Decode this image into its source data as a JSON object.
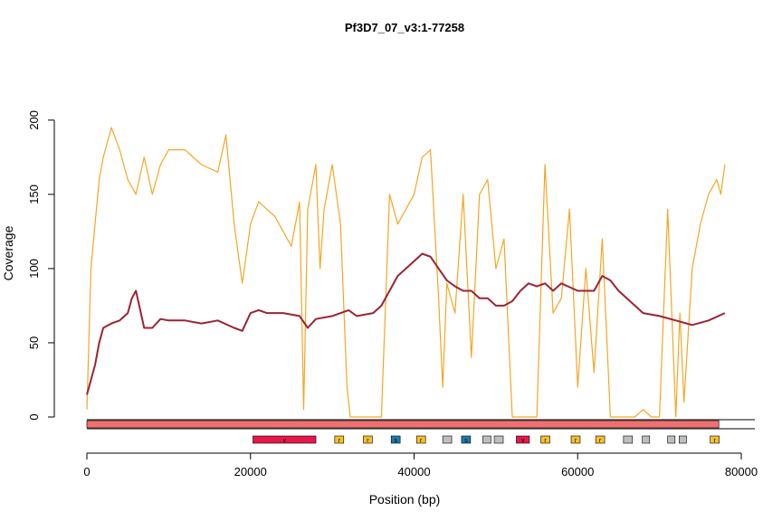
{
  "chart_data": {
    "type": "line",
    "title": "Pf3D7_07_v3:1-77258",
    "xlabel": "Position (bp)",
    "ylabel": "Coverage",
    "xlim": [
      0,
      80000
    ],
    "ylim": [
      0,
      220
    ],
    "x_ticks": [
      0,
      20000,
      40000,
      60000,
      80000
    ],
    "x_tick_labels": [
      "0",
      "20000",
      "40000",
      "60000",
      "80000"
    ],
    "y_ticks": [
      0,
      50,
      100,
      150,
      200
    ],
    "y_tick_labels": [
      "0",
      "50",
      "100",
      "150",
      "200"
    ],
    "grid": false,
    "series": [
      {
        "color": "#F5A623",
        "x": [
          0,
          500,
          1000,
          1500,
          2000,
          3000,
          4000,
          5000,
          6000,
          7000,
          8000,
          9000,
          10000,
          12000,
          14000,
          16000,
          17000,
          18000,
          19000,
          20000,
          21000,
          22000,
          23000,
          24000,
          25000,
          26000,
          26500,
          27000,
          28000,
          28500,
          29000,
          30000,
          31000,
          31800,
          32200,
          33000,
          34000,
          35000,
          36000,
          37000,
          38000,
          39000,
          40000,
          41000,
          42000,
          43000,
          43500,
          44000,
          45000,
          46000,
          47000,
          48000,
          49000,
          50000,
          51000,
          52000,
          53000,
          54000,
          55000,
          56000,
          57000,
          58000,
          59000,
          60000,
          61000,
          62000,
          63000,
          64000,
          65000,
          66000,
          67000,
          68000,
          69000,
          70000,
          71000,
          72000,
          72500,
          73000,
          74000,
          75000,
          76000,
          77000,
          77500,
          78000
        ],
        "y": [
          5,
          100,
          130,
          160,
          175,
          195,
          180,
          160,
          150,
          175,
          150,
          170,
          180,
          180,
          170,
          165,
          190,
          130,
          90,
          130,
          145,
          140,
          135,
          125,
          115,
          145,
          5,
          140,
          170,
          100,
          140,
          170,
          130,
          20,
          0,
          0,
          0,
          0,
          0,
          150,
          130,
          140,
          150,
          175,
          180,
          80,
          20,
          90,
          70,
          150,
          40,
          150,
          160,
          100,
          120,
          0,
          0,
          0,
          0,
          170,
          70,
          80,
          140,
          20,
          100,
          30,
          120,
          0,
          0,
          0,
          0,
          5,
          0,
          0,
          140,
          0,
          70,
          10,
          100,
          130,
          150,
          160,
          150,
          170
        ]
      },
      {
        "color": "#9B2335",
        "x": [
          0,
          500,
          1000,
          1500,
          2000,
          3000,
          4000,
          5000,
          5500,
          6000,
          7000,
          8000,
          9000,
          10000,
          12000,
          14000,
          16000,
          18000,
          19000,
          20000,
          21000,
          22000,
          24000,
          26000,
          27000,
          28000,
          30000,
          32000,
          33000,
          35000,
          36000,
          37000,
          38000,
          39000,
          40000,
          41000,
          42000,
          43000,
          44000,
          45000,
          46000,
          47000,
          48000,
          49000,
          50000,
          51000,
          52000,
          53000,
          54000,
          55000,
          56000,
          57000,
          58000,
          60000,
          62000,
          63000,
          64000,
          65000,
          66000,
          67000,
          68000,
          70000,
          72000,
          74000,
          76000,
          78000
        ],
        "y": [
          15,
          25,
          35,
          50,
          60,
          63,
          65,
          70,
          80,
          85,
          60,
          60,
          66,
          65,
          65,
          63,
          65,
          60,
          58,
          70,
          72,
          70,
          70,
          68,
          60,
          66,
          68,
          72,
          68,
          70,
          75,
          85,
          95,
          100,
          105,
          110,
          108,
          100,
          92,
          88,
          85,
          85,
          80,
          80,
          75,
          75,
          78,
          85,
          90,
          88,
          90,
          85,
          90,
          85,
          85,
          95,
          92,
          85,
          80,
          75,
          70,
          68,
          65,
          62,
          65,
          70
        ]
      }
    ],
    "legend": false,
    "annotation_track": {
      "colors": {
        "chromosome": "#F07070",
        "v": "#E8174A",
        "r": "#F5C029",
        "s": "#1F7BB0",
        "grey": "#BEBEBE"
      },
      "chromosome_range": [
        0,
        77258
      ],
      "genes": [
        {
          "start": 20300,
          "end": 28000,
          "label": "v",
          "type": "v"
        },
        {
          "start": 30300,
          "end": 31400,
          "label": "r",
          "type": "r"
        },
        {
          "start": 33800,
          "end": 34900,
          "label": "r",
          "type": "r"
        },
        {
          "start": 37200,
          "end": 38300,
          "label": "s",
          "type": "s"
        },
        {
          "start": 40300,
          "end": 41400,
          "label": "r",
          "type": "r"
        },
        {
          "start": 43500,
          "end": 44600,
          "label": "",
          "type": "grey"
        },
        {
          "start": 45800,
          "end": 46900,
          "label": "s",
          "type": "s"
        },
        {
          "start": 48400,
          "end": 49400,
          "label": "",
          "type": "grey"
        },
        {
          "start": 49800,
          "end": 50900,
          "label": "",
          "type": "grey"
        },
        {
          "start": 52500,
          "end": 54100,
          "label": "v",
          "type": "v"
        },
        {
          "start": 55500,
          "end": 56600,
          "label": "r",
          "type": "r"
        },
        {
          "start": 59200,
          "end": 60300,
          "label": "r",
          "type": "r"
        },
        {
          "start": 62200,
          "end": 63300,
          "label": "r",
          "type": "r"
        },
        {
          "start": 65600,
          "end": 66700,
          "label": "",
          "type": "grey"
        },
        {
          "start": 67900,
          "end": 68800,
          "label": "",
          "type": "grey"
        },
        {
          "start": 71000,
          "end": 71900,
          "label": "",
          "type": "grey"
        },
        {
          "start": 72400,
          "end": 73300,
          "label": "",
          "type": "grey"
        },
        {
          "start": 76200,
          "end": 77300,
          "label": "r",
          "type": "r"
        }
      ]
    }
  }
}
